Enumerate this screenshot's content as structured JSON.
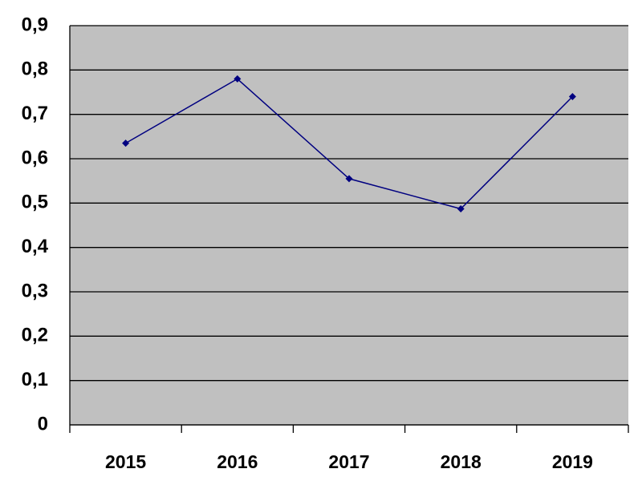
{
  "chart_data": {
    "type": "line",
    "categories": [
      "2015",
      "2016",
      "2017",
      "2018",
      "2019"
    ],
    "series": [
      {
        "color": "#000080",
        "values": [
          0.635,
          0.78,
          0.555,
          0.487,
          0.74
        ]
      }
    ],
    "ylim": [
      0,
      0.9
    ],
    "yticks": [
      0,
      {
        "value": 0.1,
        "label": "0,1"
      },
      {
        "value": 0.2,
        "label": "0,2"
      },
      {
        "value": 0.3,
        "label": "0,3"
      },
      {
        "value": 0.4,
        "label": "0,4"
      },
      {
        "value": 0.5,
        "label": "0,5"
      },
      {
        "value": 0.6,
        "label": "0,6"
      },
      {
        "value": 0.7,
        "label": "0,7"
      },
      {
        "value": 0.8,
        "label": "0,8"
      },
      {
        "value": 0.9,
        "label": "0,9"
      }
    ],
    "grid": true
  }
}
